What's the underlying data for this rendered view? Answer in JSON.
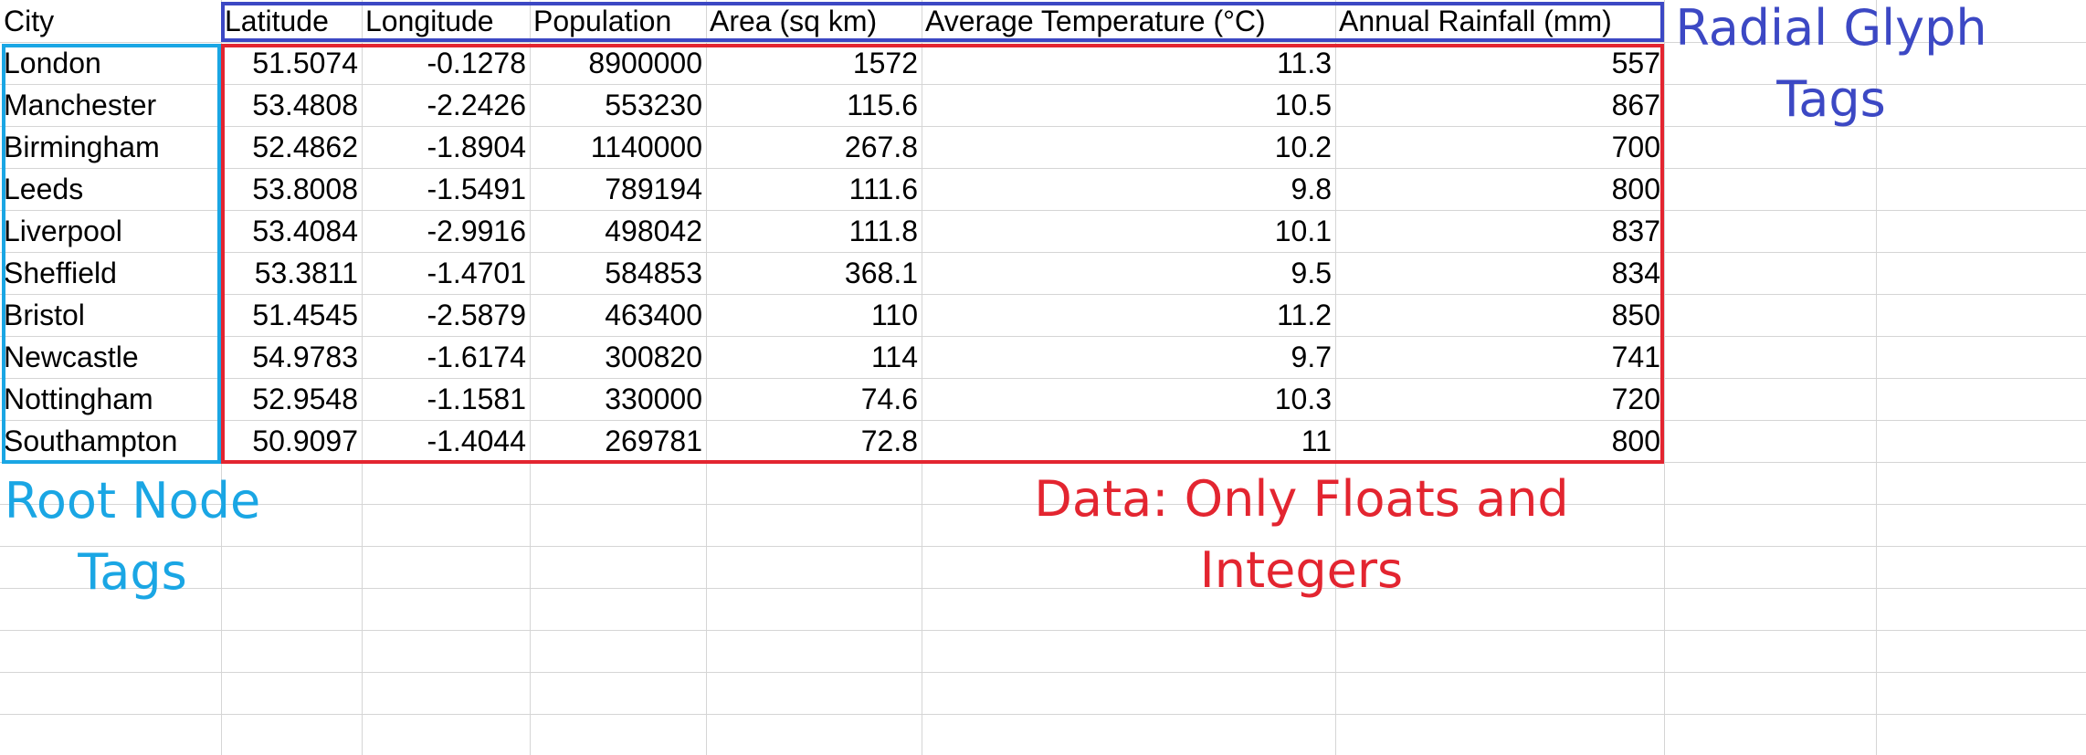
{
  "colors": {
    "grid": "#d5d5d5",
    "root_node": "#1aa6e4",
    "radial_glyph": "#3c48c4",
    "data": "#e32530"
  },
  "table": {
    "header": [
      "City",
      "Latitude",
      "Longitude",
      "Population",
      "Area (sq km)",
      "Average Temperature (°C)",
      "Annual Rainfall (mm)"
    ],
    "rows": [
      [
        "London",
        "51.5074",
        "-0.1278",
        "8900000",
        "1572",
        "11.3",
        "557"
      ],
      [
        "Manchester",
        "53.4808",
        "-2.2426",
        "553230",
        "115.6",
        "10.5",
        "867"
      ],
      [
        "Birmingham",
        "52.4862",
        "-1.8904",
        "1140000",
        "267.8",
        "10.2",
        "700"
      ],
      [
        "Leeds",
        "53.8008",
        "-1.5491",
        "789194",
        "111.6",
        "9.8",
        "800"
      ],
      [
        "Liverpool",
        "53.4084",
        "-2.9916",
        "498042",
        "111.8",
        "10.1",
        "837"
      ],
      [
        "Sheffield",
        "53.3811",
        "-1.4701",
        "584853",
        "368.1",
        "9.5",
        "834"
      ],
      [
        "Bristol",
        "51.4545",
        "-2.5879",
        "463400",
        "110",
        "11.2",
        "850"
      ],
      [
        "Newcastle",
        "54.9783",
        "-1.6174",
        "300820",
        "114",
        "9.7",
        "741"
      ],
      [
        "Nottingham",
        "52.9548",
        "-1.1581",
        "330000",
        "74.6",
        "10.3",
        "720"
      ],
      [
        "Southampton",
        "50.9097",
        "-1.4044",
        "269781",
        "72.8",
        "11",
        "800"
      ]
    ]
  },
  "annotations": {
    "radial_glyph": "Radial Glyph\nTags",
    "root_node": "Root Node\nTags",
    "data": "Data: Only Floats and Integers"
  }
}
